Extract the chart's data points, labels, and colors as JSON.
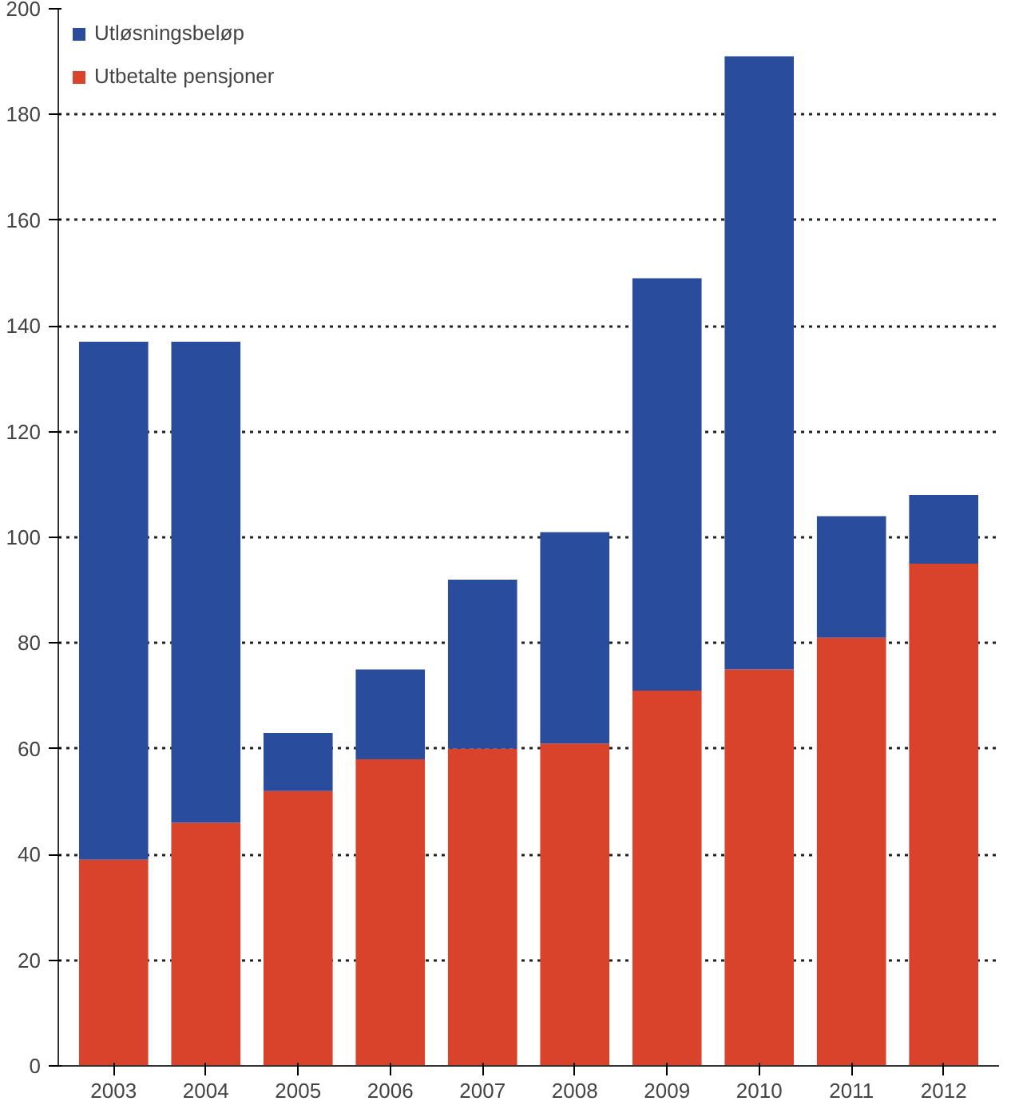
{
  "chart_data": {
    "type": "bar",
    "stacked": true,
    "categories": [
      "2003",
      "2004",
      "2005",
      "2006",
      "2007",
      "2008",
      "2009",
      "2010",
      "2011",
      "2012"
    ],
    "series": [
      {
        "name": "Utbetalte pensjoner",
        "color": "#d9432c",
        "values": [
          39,
          46,
          52,
          58,
          60,
          61,
          71,
          75,
          81,
          95
        ]
      },
      {
        "name": "Utløsningsbeløp",
        "color": "#2a4c9c",
        "values": [
          98,
          91,
          11,
          17,
          32,
          40,
          78,
          116,
          23,
          13
        ]
      }
    ],
    "ylim": [
      0,
      200
    ],
    "yticks": [
      0,
      20,
      40,
      60,
      80,
      100,
      120,
      140,
      160,
      180,
      200
    ],
    "grid": "y",
    "legend": "top left"
  }
}
